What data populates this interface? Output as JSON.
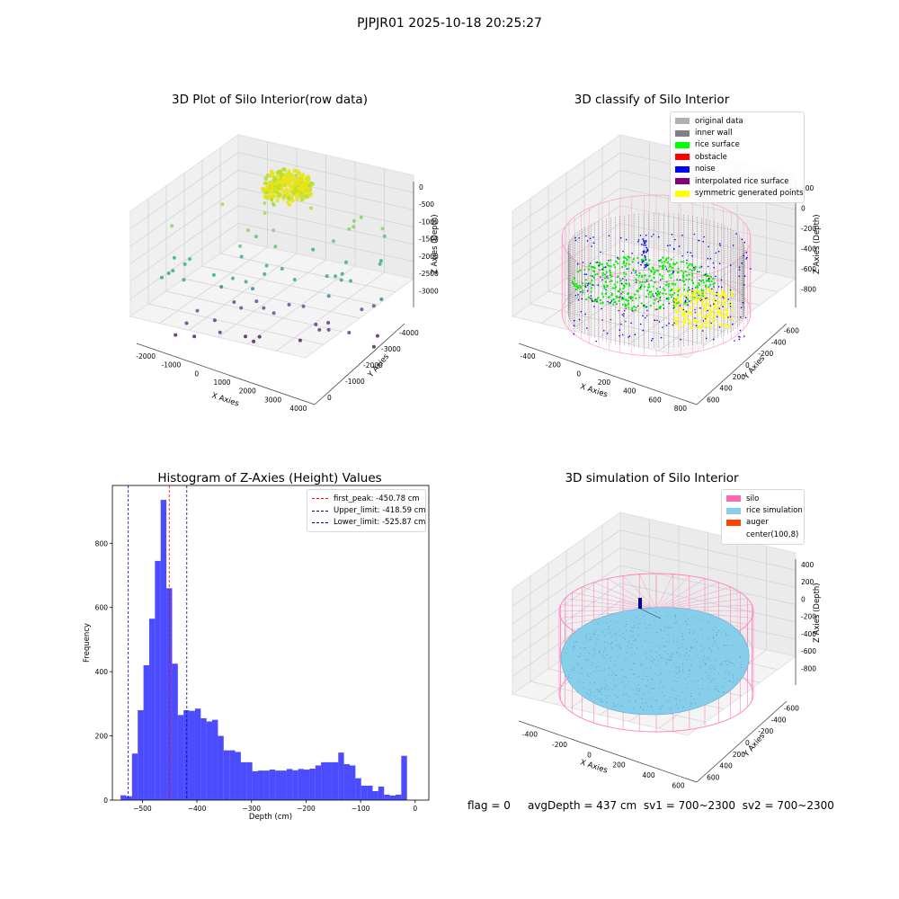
{
  "figure": {
    "suptitle": "PJPJR01 2025-10-18 20:25:27"
  },
  "chart_data": [
    {
      "type": "scatter",
      "title": "3D Plot of Silo Interior(row data)",
      "xlabel": "X Axies",
      "ylabel": "Y Axies",
      "zlabel": "Z Axies (Depth)",
      "x_ticks": [
        "-2000",
        "-1000",
        "0",
        "1000",
        "2000",
        "3000",
        "4000"
      ],
      "y_ticks": [
        "0",
        "-1000",
        "-2000",
        "-3000",
        "-4000"
      ],
      "z_ticks": [
        "0",
        "-500",
        "-1000",
        "-1500",
        "-2000",
        "-2500",
        "-3000"
      ],
      "colormap": "viridis",
      "grid": true
    },
    {
      "type": "scatter",
      "title": "3D classify of Silo Interior",
      "xlabel": "X Axies",
      "ylabel": "Y Axies",
      "zlabel": "Z Axies (Depth)",
      "x_ticks": [
        "-400",
        "-200",
        "0",
        "200",
        "400",
        "600",
        "800"
      ],
      "y_ticks": [
        "600",
        "400",
        "200",
        "0",
        "-200",
        "-400",
        "-600"
      ],
      "z_ticks": [
        "200",
        "0",
        "-200",
        "-400",
        "-600",
        "-800"
      ],
      "legend_position": "top-right",
      "legend": [
        {
          "label": "original data",
          "color": "#b0b0b0"
        },
        {
          "label": "inner wall",
          "color": "#808080"
        },
        {
          "label": "rice surface",
          "color": "#00ff00"
        },
        {
          "label": "obstacle",
          "color": "#ff0000"
        },
        {
          "label": "noise",
          "color": "#0000ff"
        },
        {
          "label": "interpolated rice surface",
          "color": "#800080"
        },
        {
          "label": "symmetric generated points",
          "color": "#ffff00"
        }
      ],
      "grid": true
    },
    {
      "type": "bar",
      "title": "Histogram of Z-Axies (Height) Values",
      "xlabel": "Depth (cm)",
      "ylabel": "Frequency",
      "xlim": [
        -555,
        25
      ],
      "ylim": [
        0,
        980
      ],
      "x_ticks": [
        -500,
        -400,
        -300,
        -200,
        -100,
        0
      ],
      "y_ticks": [
        0,
        200,
        400,
        600,
        800
      ],
      "bin_width": 10.5,
      "bin_start": -540,
      "values": [
        15,
        12,
        145,
        280,
        420,
        565,
        745,
        935,
        660,
        425,
        265,
        280,
        278,
        285,
        255,
        245,
        250,
        200,
        155,
        155,
        150,
        118,
        118,
        90,
        92,
        92,
        95,
        92,
        92,
        97,
        93,
        97,
        95,
        98,
        108,
        118,
        118,
        118,
        148,
        112,
        108,
        68,
        45,
        45,
        28,
        42,
        17,
        14,
        17,
        138
      ],
      "bar_color": "#0000ff",
      "vlines": [
        {
          "label": "first_peak: -450.78 cm",
          "x": -450.78,
          "color": "#ff0000"
        },
        {
          "label": "Upper_limit: -418.59 cm",
          "x": -418.59,
          "color": "#0000aa"
        },
        {
          "label": "Lower_limit: -525.87 cm",
          "x": -525.87,
          "color": "#0000aa"
        }
      ],
      "legend_position": "top-right"
    },
    {
      "type": "scatter",
      "title": "3D simulation of Silo Interior",
      "xlabel": "X Axies",
      "ylabel": "Y Axies",
      "zlabel": "Z Axies (Depth)",
      "x_ticks": [
        "-400",
        "-200",
        "0",
        "200",
        "400",
        "600"
      ],
      "y_ticks": [
        "600",
        "400",
        "200",
        "0",
        "-200",
        "-400",
        "-600"
      ],
      "z_ticks": [
        "400",
        "200",
        "0",
        "-200",
        "-400",
        "-600",
        "-800"
      ],
      "legend_position": "top-right",
      "legend": [
        {
          "label": "silo",
          "color": "#ff69b4"
        },
        {
          "label": "rice simulation",
          "color": "#87ceeb"
        },
        {
          "label": "auger",
          "color": "#ff4500"
        },
        {
          "label": "center(100,8)",
          "color": "#ffffff"
        }
      ],
      "grid": true
    }
  ],
  "footer": {
    "flag": "flag = 0",
    "avg": "avgDepth = 437 cm",
    "sv1": "sv1 = 700~2300",
    "sv2": "sv2 = 700~2300"
  }
}
